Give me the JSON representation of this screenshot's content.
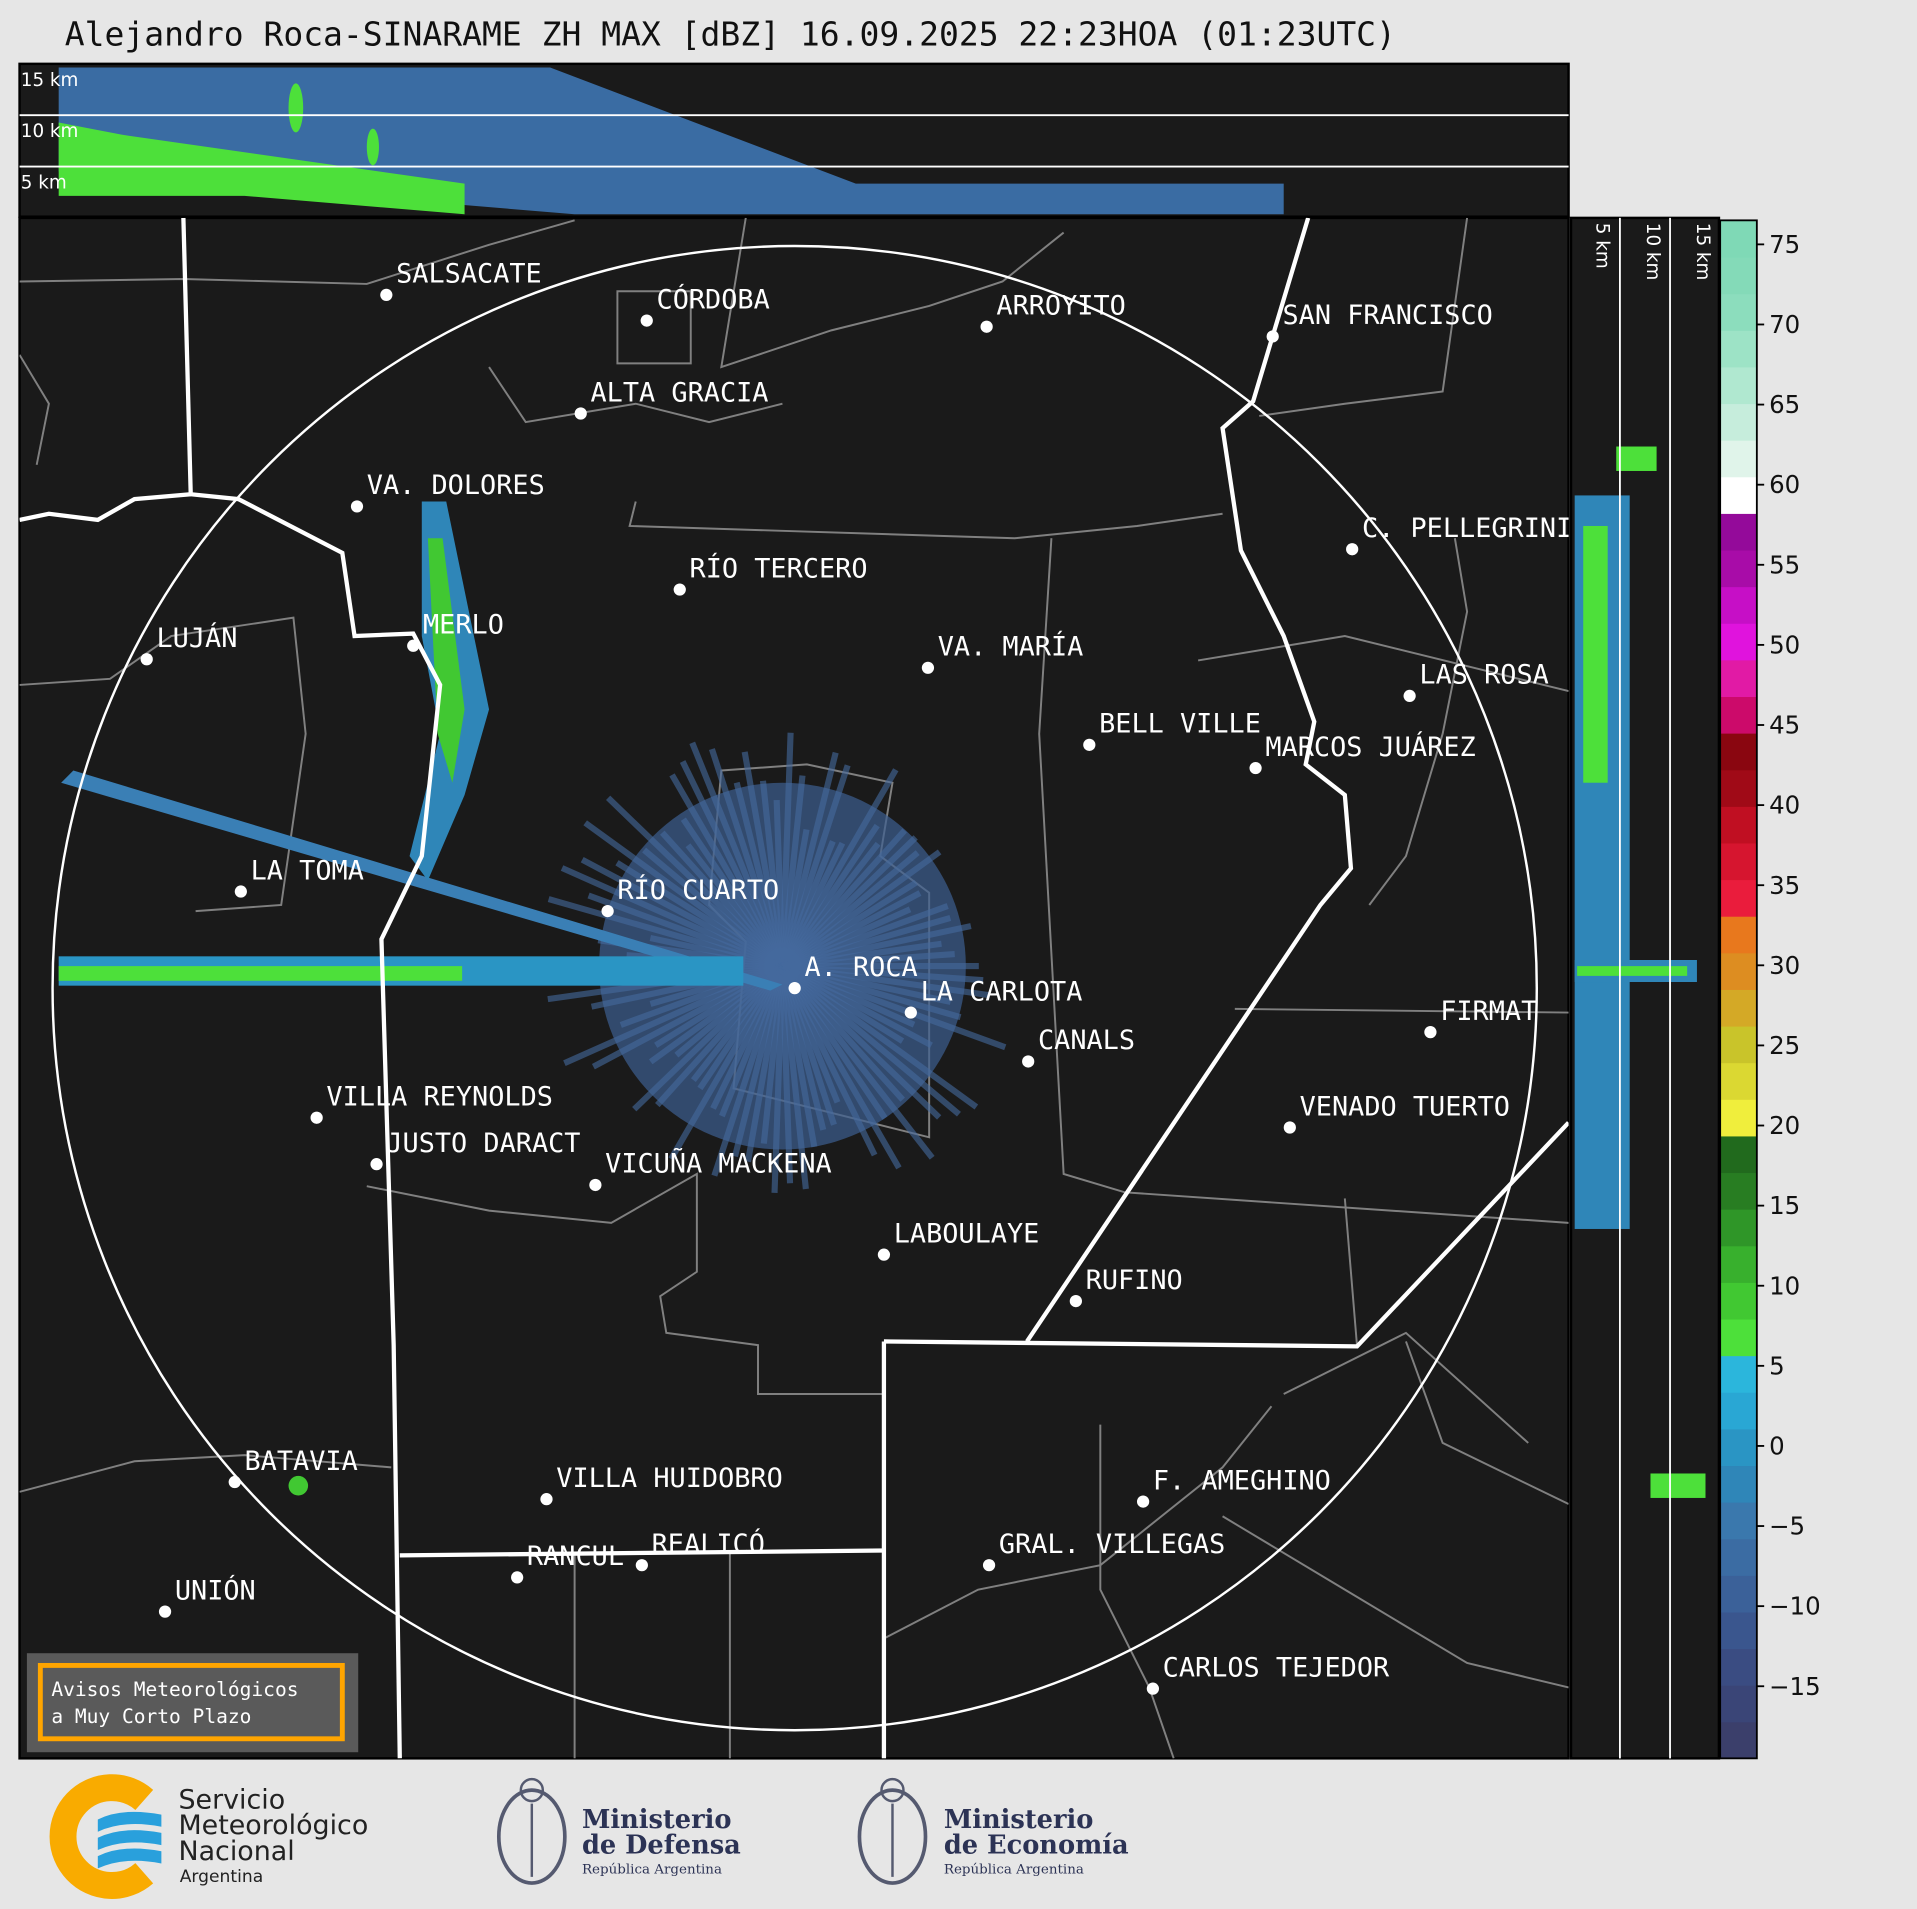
{
  "title": "Alejandro Roca-SINARAME ZH MAX [dBZ] 16.09.2025 22:23HOA (01:23UTC)",
  "top_panel": {
    "height_labels": [
      "15 km",
      "10 km",
      "5 km"
    ]
  },
  "side_panel": {
    "height_labels": [
      "5 km",
      "10 km",
      "15 km"
    ]
  },
  "map": {
    "radar_site": "A. ROCA",
    "cities": [
      "SALSACATE",
      "CÓRDOBA",
      "ARROYITO",
      "SAN FRANCISCO",
      "ALTA GRACIA",
      "VA. DOLORES",
      "C. PELLEGRINI",
      "RÍO TERCERO",
      "LUJÁN",
      "MERLO",
      "VA. MARÍA",
      "LAS ROSA",
      "BELL VILLE",
      "MARCOS JUÁREZ",
      "LA TOMA",
      "RÍO CUARTO",
      "A. ROCA",
      "LA CARLOTA",
      "CANALS",
      "FIRMAT",
      "VILLA REYNOLDS",
      "JUSTO DARACT",
      "VICUÑA MACKENA",
      "VENADO TUERTO",
      "LABOULAYE",
      "RUFINO",
      "BATAVIA",
      "VILLA HUIDOBRO",
      "F. AMEGHINO",
      "RANCUL",
      "REALICÓ",
      "GRAL. VILLEGAS",
      "UNIÓN",
      "CARLOS TEJEDOR"
    ],
    "warning_box": {
      "line1": "Avisos Meteorológicos",
      "line2": "a Muy Corto Plazo",
      "border_color": "#ffa500"
    }
  },
  "colorbar": {
    "unit": "dBZ",
    "ticks": [
      "75",
      "70",
      "65",
      "60",
      "55",
      "50",
      "45",
      "40",
      "35",
      "30",
      "25",
      "20",
      "15",
      "10",
      "5",
      "0",
      "−5",
      "−10",
      "−15"
    ],
    "range": [
      -19.5,
      76.5
    ],
    "colors": [
      "#3b3f6b",
      "#3a4577",
      "#3a4c82",
      "#3a568e",
      "#3b6199",
      "#3b6ca3",
      "#3a78ad",
      "#2f86b8",
      "#2a95c4",
      "#29a7d4",
      "#2bb6dc",
      "#4de03a",
      "#41c832",
      "#38b02d",
      "#2f9628",
      "#287d22",
      "#216a1d",
      "#f0ee3c",
      "#dbd832",
      "#c9c42a",
      "#d4a926",
      "#dd8d21",
      "#e8781d",
      "#ea1c3c",
      "#d6152f",
      "#c00f22",
      "#a00a17",
      "#8a0610",
      "#cc0a6a",
      "#e11aa5",
      "#e013dd",
      "#c60fc6",
      "#a80ca8",
      "#940a9a",
      "#ffffff",
      "#e0f4ea",
      "#c6eddc",
      "#b0e8d0",
      "#9de3c6",
      "#8cddbd",
      "#84dab8",
      "#7fd9b6"
    ],
    "colorbar_colors_note_free": true
  },
  "logos": {
    "smn": {
      "lines": [
        "Servicio",
        "Meteorológico",
        "Nacional",
        "Argentina"
      ]
    },
    "defensa": {
      "lines": [
        "Ministerio",
        "de Defensa",
        "República Argentina"
      ]
    },
    "economia": {
      "lines": [
        "Ministerio",
        "de Economía",
        "República Argentina"
      ]
    }
  },
  "colors": {
    "background": "#e6e6e6",
    "map_bg": "#1a1a1a",
    "province_border": "#ffffff",
    "dept_border": "#808080"
  }
}
